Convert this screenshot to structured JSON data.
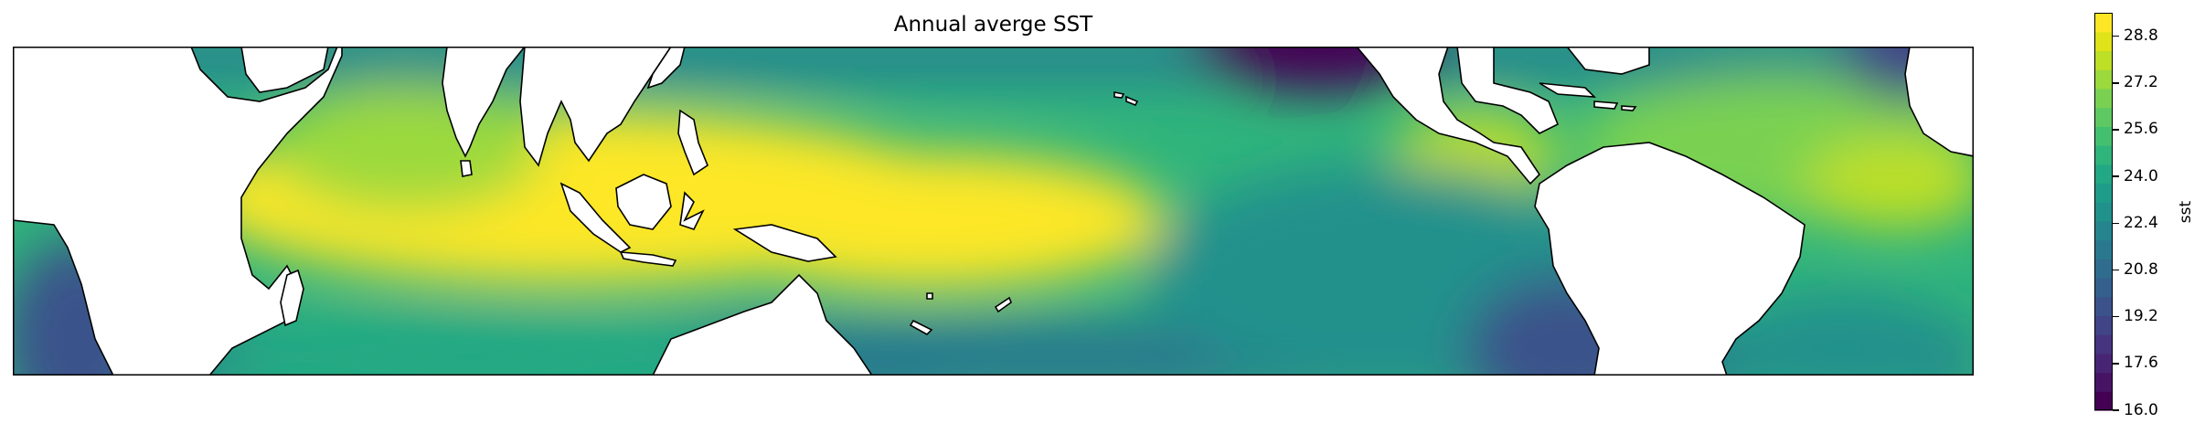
{
  "title": "Annual averge SST",
  "colorbar": {
    "label": "sst",
    "min": 16.0,
    "max": 29.6,
    "ticks": [
      "16.0",
      "17.6",
      "19.2",
      "20.8",
      "22.4",
      "24.0",
      "25.6",
      "27.2",
      "28.8"
    ],
    "colors": [
      "#440154",
      "#471365",
      "#482475",
      "#463480",
      "#414487",
      "#3b528b",
      "#355f8d",
      "#2f6c8e",
      "#2a788e",
      "#25848e",
      "#21918c",
      "#1e9c89",
      "#22a884",
      "#2fb47c",
      "#44bf70",
      "#5ec962",
      "#7ad151",
      "#9bd93c",
      "#bddf26",
      "#dfe318",
      "#fde725"
    ]
  },
  "map": {
    "projection": "PlateCarree",
    "lon_range": [
      20,
      360
    ],
    "lat_range": [
      -30,
      30
    ]
  }
}
